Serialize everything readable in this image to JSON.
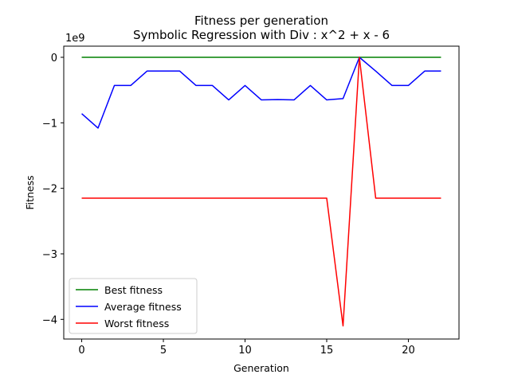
{
  "chart_data": {
    "type": "line",
    "title": "Fitness per generation",
    "subtitle": "Symbolic Regression with Div : x^2 + x - 6",
    "xlabel": "Generation",
    "ylabel": "Fitness",
    "y_scale_label": "1e9",
    "xlim": [
      -1.1,
      23.1
    ],
    "ylim": [
      -4.3,
      0.17
    ],
    "x_ticks": [
      0,
      5,
      10,
      15,
      20
    ],
    "y_ticks": [
      0,
      -1,
      -2,
      -3,
      -4
    ],
    "y_tick_labels": [
      "0",
      "−1",
      "−2",
      "−3",
      "−4"
    ],
    "grid": false,
    "legend_position": "lower-left",
    "x": [
      0,
      1,
      2,
      3,
      4,
      5,
      6,
      7,
      8,
      9,
      10,
      11,
      12,
      13,
      14,
      15,
      16,
      17,
      18,
      19,
      20,
      21,
      22
    ],
    "series": [
      {
        "name": "Best fitness",
        "color": "#008000",
        "values": [
          0,
          0,
          0,
          0,
          0,
          0,
          0,
          0,
          0,
          0,
          0,
          0,
          0,
          0,
          0,
          0,
          0,
          0,
          0,
          0,
          0,
          0,
          0
        ]
      },
      {
        "name": "Average fitness",
        "color": "#0000ff",
        "values": [
          -0.86,
          -1.08,
          -0.43,
          -0.43,
          -0.21,
          -0.21,
          -0.21,
          -0.43,
          -0.43,
          -0.65,
          -0.43,
          -0.65,
          -0.645,
          -0.65,
          -0.43,
          -0.65,
          -0.63,
          0,
          -0.21,
          -0.43,
          -0.43,
          -0.21,
          -0.21
        ]
      },
      {
        "name": "Worst fitness",
        "color": "#ff0000",
        "values": [
          -2.15,
          -2.15,
          -2.15,
          -2.15,
          -2.15,
          -2.15,
          -2.15,
          -2.15,
          -2.15,
          -2.15,
          -2.15,
          -2.15,
          -2.15,
          -2.15,
          -2.15,
          -2.15,
          -4.1,
          0,
          -2.15,
          -2.15,
          -2.15,
          -2.15,
          -2.15
        ]
      }
    ]
  }
}
